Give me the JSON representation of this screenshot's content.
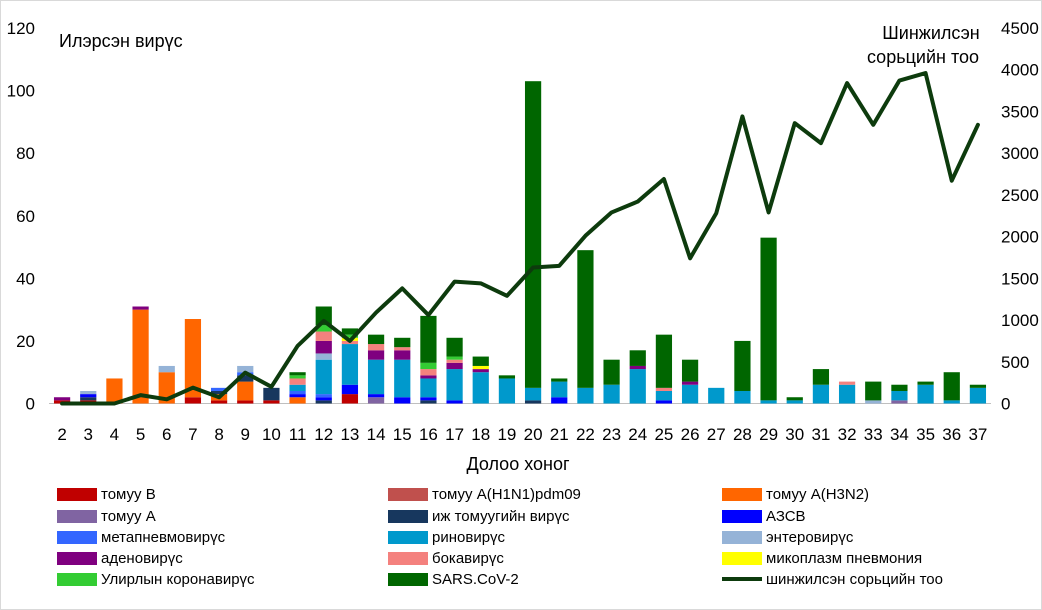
{
  "chart_data": {
    "type": "bar",
    "stacked": true,
    "xlabel": "Долоо хоног",
    "ylabel_left": "Илэрсэн вирүс",
    "ylabel_right": [
      "Шинжилсэн",
      "сорьцийн тоо"
    ],
    "categories": [
      "2",
      "3",
      "4",
      "5",
      "6",
      "7",
      "8",
      "9",
      "10",
      "11",
      "12",
      "13",
      "14",
      "15",
      "16",
      "17",
      "18",
      "19",
      "20",
      "21",
      "22",
      "23",
      "24",
      "25",
      "26",
      "27",
      "28",
      "29",
      "30",
      "31",
      "32",
      "33",
      "34",
      "35",
      "36",
      "37"
    ],
    "ylim_left": [
      0,
      120
    ],
    "yticks_left": [
      0,
      20,
      40,
      60,
      80,
      100,
      120
    ],
    "ylim_right": [
      0,
      4500
    ],
    "yticks_right": [
      0,
      500,
      1000,
      1500,
      2000,
      2500,
      3000,
      3500,
      4000,
      4500
    ],
    "grid": false,
    "legend_position": "bottom",
    "series": [
      {
        "name": "томуу В",
        "color": "#c00000",
        "values": [
          1,
          1,
          0,
          0,
          0,
          2,
          1,
          1,
          1,
          0,
          0,
          3,
          0,
          0,
          0,
          0,
          0,
          0,
          0,
          0,
          0,
          0,
          0,
          0,
          0,
          0,
          0,
          0,
          0,
          0,
          0,
          0,
          0,
          0,
          0,
          0
        ]
      },
      {
        "name": "томуу А(H1N1)pdm09",
        "color": "#c0504d",
        "values": [
          0,
          0,
          0,
          0,
          0,
          0,
          0,
          0,
          0,
          0,
          0,
          0,
          0,
          0,
          0,
          0,
          0,
          0,
          0,
          0,
          0,
          0,
          0,
          0,
          0,
          0,
          0,
          0,
          0,
          0,
          0,
          0,
          0,
          0,
          0,
          0
        ]
      },
      {
        "name": "томуу А(H3N2)",
        "color": "#ff6600",
        "values": [
          0,
          0,
          8,
          30,
          10,
          25,
          2,
          6,
          0,
          2,
          0,
          0,
          0,
          0,
          0,
          0,
          0,
          0,
          0,
          0,
          0,
          0,
          0,
          0,
          0,
          0,
          0,
          0,
          0,
          0,
          0,
          0,
          0,
          0,
          0,
          0
        ]
      },
      {
        "name": "томуу А",
        "color": "#8064a2",
        "values": [
          0,
          0,
          0,
          0,
          0,
          0,
          0,
          0,
          0,
          0,
          0,
          0,
          2,
          0,
          0,
          0,
          0,
          0,
          0,
          0,
          0,
          0,
          0,
          0,
          0,
          0,
          0,
          0,
          0,
          0,
          0,
          0,
          1,
          0,
          0,
          0
        ]
      },
      {
        "name": "иж томуугийн вирүс",
        "color": "#17375e",
        "values": [
          0,
          1,
          0,
          0,
          0,
          0,
          1,
          2,
          4,
          0,
          1,
          0,
          0,
          0,
          1,
          0,
          0,
          0,
          1,
          0,
          0,
          0,
          0,
          0,
          0,
          0,
          0,
          0,
          0,
          0,
          0,
          0,
          0,
          0,
          0,
          0
        ]
      },
      {
        "name": "АЗСВ",
        "color": "#0000ff",
        "values": [
          0,
          1,
          0,
          0,
          0,
          0,
          0,
          0,
          0,
          1,
          1,
          3,
          1,
          2,
          1,
          1,
          0,
          0,
          0,
          2,
          0,
          0,
          0,
          1,
          0,
          0,
          0,
          0,
          0,
          0,
          0,
          0,
          0,
          0,
          0,
          0
        ]
      },
      {
        "name": "метапневмовирүс",
        "color": "#3366ff",
        "values": [
          0,
          0,
          0,
          0,
          0,
          0,
          1,
          1,
          0,
          1,
          1,
          0,
          0,
          0,
          0,
          0,
          0,
          0,
          0,
          0,
          0,
          0,
          0,
          0,
          0,
          0,
          0,
          0,
          0,
          0,
          0,
          0,
          0,
          0,
          0,
          0
        ]
      },
      {
        "name": "риновирүс",
        "color": "#0099cc",
        "values": [
          0,
          0,
          0,
          0,
          0,
          0,
          0,
          0,
          0,
          2,
          11,
          13,
          11,
          12,
          6,
          10,
          10,
          8,
          4,
          5,
          5,
          6,
          11,
          3,
          6,
          5,
          4,
          1,
          1,
          6,
          6,
          0,
          3,
          6,
          1,
          5
        ]
      },
      {
        "name": "энтеровирүс",
        "color": "#95b3d7",
        "values": [
          0,
          1,
          0,
          0,
          2,
          0,
          0,
          2,
          0,
          0,
          2,
          0,
          0,
          0,
          0,
          0,
          0,
          0,
          0,
          0,
          0,
          0,
          0,
          0,
          0,
          0,
          0,
          0,
          0,
          0,
          0,
          1,
          0,
          0,
          0,
          0
        ]
      },
      {
        "name": "аденовирүс",
        "color": "#7f007f",
        "values": [
          1,
          0,
          0,
          1,
          0,
          0,
          0,
          0,
          0,
          0,
          4,
          0,
          3,
          3,
          1,
          2,
          1,
          0,
          0,
          0,
          0,
          0,
          1,
          0,
          1,
          0,
          0,
          0,
          0,
          0,
          0,
          0,
          0,
          0,
          0,
          0
        ]
      },
      {
        "name": "бокавирүс",
        "color": "#f4817e",
        "values": [
          0,
          0,
          0,
          0,
          0,
          0,
          0,
          0,
          0,
          2,
          3,
          1,
          2,
          1,
          2,
          1,
          0,
          0,
          0,
          0,
          0,
          0,
          0,
          1,
          0,
          0,
          0,
          0,
          0,
          0,
          1,
          0,
          0,
          0,
          0,
          0
        ]
      },
      {
        "name": "микоплазм пневмония",
        "color": "#ffff00",
        "values": [
          0,
          0,
          0,
          0,
          0,
          0,
          0,
          0,
          0,
          0,
          0,
          1,
          0,
          0,
          0,
          0,
          1,
          0,
          0,
          0,
          0,
          0,
          0,
          0,
          0,
          0,
          0,
          0,
          0,
          0,
          0,
          0,
          0,
          0,
          0,
          0
        ]
      },
      {
        "name": "Улирлын коронавирүс",
        "color": "#33cc33",
        "values": [
          0,
          0,
          0,
          0,
          0,
          0,
          0,
          0,
          0,
          1,
          2,
          1,
          0,
          0,
          2,
          1,
          0,
          0,
          0,
          0,
          0,
          0,
          0,
          0,
          0,
          0,
          0,
          0,
          0,
          0,
          0,
          0,
          0,
          0,
          0,
          0
        ]
      },
      {
        "name": "SARS.CoV-2",
        "color": "#006600",
        "values": [
          0,
          0,
          0,
          0,
          0,
          0,
          0,
          0,
          0,
          1,
          6,
          2,
          3,
          3,
          15,
          6,
          3,
          1,
          98,
          1,
          44,
          8,
          5,
          17,
          7,
          0,
          16,
          52,
          1,
          5,
          0,
          6,
          2,
          1,
          9,
          1
        ]
      }
    ],
    "line": {
      "name": "шинжилсэн сорьцийн тоо",
      "color": "#0d3b0d",
      "axis": "right",
      "values": [
        0,
        0,
        0,
        100,
        50,
        190,
        75,
        370,
        200,
        690,
        990,
        750,
        1090,
        1380,
        1060,
        1460,
        1440,
        1290,
        1630,
        1650,
        2010,
        2290,
        2420,
        2690,
        1740,
        2280,
        3440,
        2290,
        3360,
        3120,
        3840,
        3340,
        3870,
        3960,
        2670,
        3340
      ]
    }
  }
}
